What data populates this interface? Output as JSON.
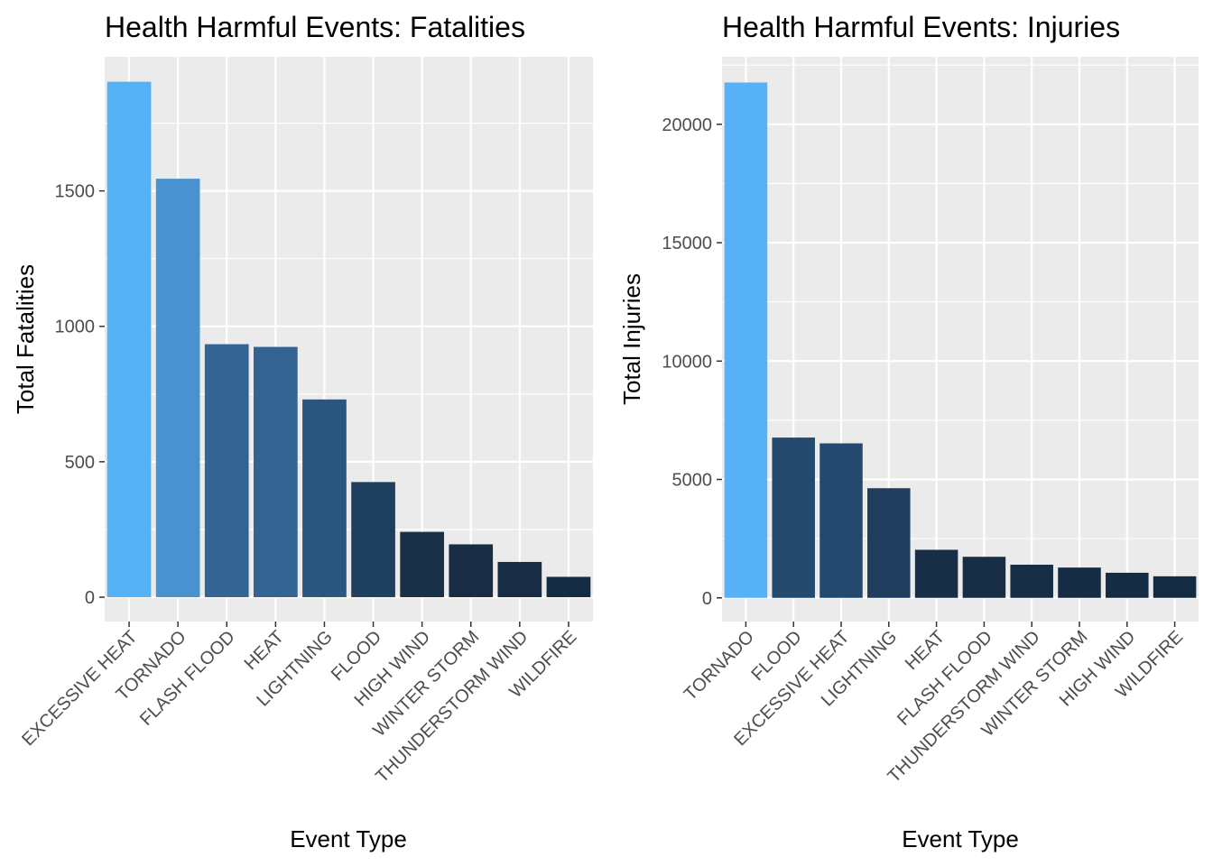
{
  "chart_data": [
    {
      "type": "bar",
      "title": "Health Harmful Events: Fatalities",
      "xlabel": "Event Type",
      "ylabel": "Total Fatalities",
      "categories": [
        "EXCESSIVE HEAT",
        "TORNADO",
        "FLASH FLOOD",
        "HEAT",
        "LIGHTNING",
        "FLOOD",
        "HIGH WIND",
        "WINTER STORM",
        "THUNDERSTORM WIND",
        "WILDFIRE"
      ],
      "values": [
        1903,
        1545,
        934,
        924,
        730,
        425,
        241,
        195,
        130,
        75
      ],
      "bar_colors": [
        "#56b1f7",
        "#4992d0",
        "#336493",
        "#326393",
        "#2a5680",
        "#1f3f5e",
        "#1a2f48",
        "#182c44",
        "#182c44",
        "#132b43"
      ],
      "ylim": [
        -90,
        1995
      ],
      "yticks": [
        0,
        500,
        1000,
        1500
      ],
      "ytick_labels": [
        "0",
        "500",
        "1000",
        "1500"
      ],
      "grid": true,
      "legend": "none"
    },
    {
      "type": "bar",
      "title": "Health Harmful Events: Injuries",
      "xlabel": "Event Type",
      "ylabel": "Total Injuries",
      "categories": [
        "TORNADO",
        "FLOOD",
        "EXCESSIVE HEAT",
        "LIGHTNING",
        "HEAT",
        "FLASH FLOOD",
        "THUNDERSTORM WIND",
        "WINTER STORM",
        "HIGH WIND",
        "WILDFIRE"
      ],
      "values": [
        21765,
        6770,
        6525,
        4631,
        2030,
        1734,
        1400,
        1280,
        1060,
        910
      ],
      "bar_colors": [
        "#56b1f7",
        "#244a6e",
        "#234a6e",
        "#1f3e5d",
        "#182e47",
        "#172d46",
        "#152d45",
        "#152c44",
        "#152c44",
        "#132b43"
      ],
      "ylim": [
        -1000,
        22850
      ],
      "yticks": [
        0,
        5000,
        10000,
        15000,
        20000
      ],
      "ytick_labels": [
        "0",
        "5000",
        "10000",
        "15000",
        "20000"
      ],
      "grid": true,
      "legend": "none"
    }
  ]
}
